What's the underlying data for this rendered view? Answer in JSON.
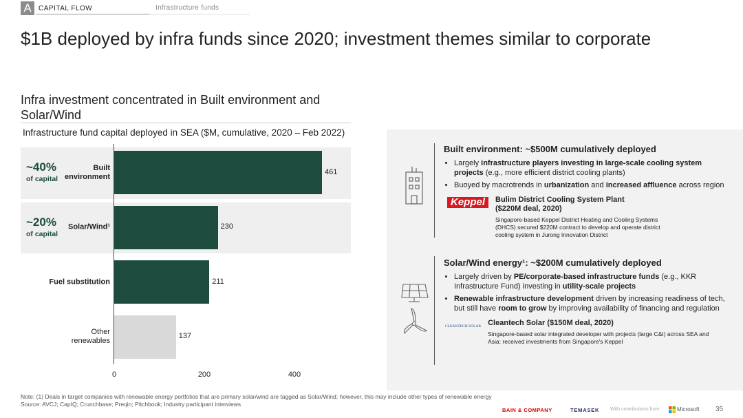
{
  "header": {
    "section_letter": "A",
    "section": "CAPITAL FLOW",
    "subsection": "Infrastructure funds"
  },
  "title": "$1B deployed by infra funds since 2020; investment themes similar to corporate",
  "subtitle": "Infra investment concentrated in Built environment and Solar/Wind",
  "chart_data": {
    "type": "bar",
    "orientation": "horizontal",
    "title": "Infrastructure fund capital deployed in SEA ($M, cumulative, 2020 – Feb 2022)",
    "categories": [
      "Built environment",
      "Solar/Wind¹",
      "Fuel substitution",
      "Other renewables"
    ],
    "values": [
      461,
      230,
      211,
      137
    ],
    "colors": [
      "#1d4c3e",
      "#1d4c3e",
      "#1d4c3e",
      "#d9d9d9"
    ],
    "xlim": [
      0,
      500
    ],
    "xticks": [
      0,
      200,
      400
    ],
    "annotations": [
      {
        "share": "~40%",
        "label": "of capital"
      },
      {
        "share": "~20%",
        "label": "of capital"
      }
    ]
  },
  "panel": {
    "sections": [
      {
        "heading": [
          "Built environment: ~$500M",
          " cumulatively deployed"
        ],
        "bullets": [
          [
            "Largely ",
            "infrastructure players investing in large-scale cooling system projects",
            " (e.g., more efficient district cooling plants)"
          ],
          [
            "Buoyed by macrotrends in ",
            "urbanization",
            " and ",
            "increased affluence",
            " across region"
          ]
        ],
        "logo": "Keppel",
        "deal": [
          "Bulim District Cooling System Plant",
          " ($220M deal, 2020)"
        ],
        "description": "Singapore-based Keppel District Heating and Cooling Systems (DHCS) secured $220M contract to develop and operate district cooling system in Jurong Innovation District"
      },
      {
        "heading": [
          "Solar/Wind energy¹: ~$200M",
          " cumulatively deployed"
        ],
        "bullets": [
          [
            "Largely driven by ",
            "PE/corporate-based infrastructure funds",
            " (e.g., KKR Infrastructure Fund) investing in ",
            "utility-scale projects"
          ],
          [
            "",
            "Renewable infrastructure development",
            " driven by increasing readiness of tech, but still have ",
            "room to grow",
            " by improving availability of financing and regulation"
          ]
        ],
        "logo": "CLEANTECH SOLAR",
        "deal": [
          "Cleantech Solar",
          " ($150M deal, 2020)"
        ],
        "description": "Singapore-based solar integrated developer with projects (large C&I) across SEA and Asia; received investments from Singapore's Keppel"
      }
    ]
  },
  "footer": {
    "note": "Note: (1) Deals in target companies with renewable energy portfolios that are primary solar/wind are tagged as Solar/Wind; however, this may include other types of renewable energy",
    "source": "Source: AVCJ; CapIQ; Crunchbase; Preqin; Pitchbook; Industry participant interviews",
    "brand1": "BAIN & COMPANY",
    "brand2": "TEMASEK",
    "contrib": "With contributions from",
    "brand3": "Microsoft",
    "page": "35"
  }
}
